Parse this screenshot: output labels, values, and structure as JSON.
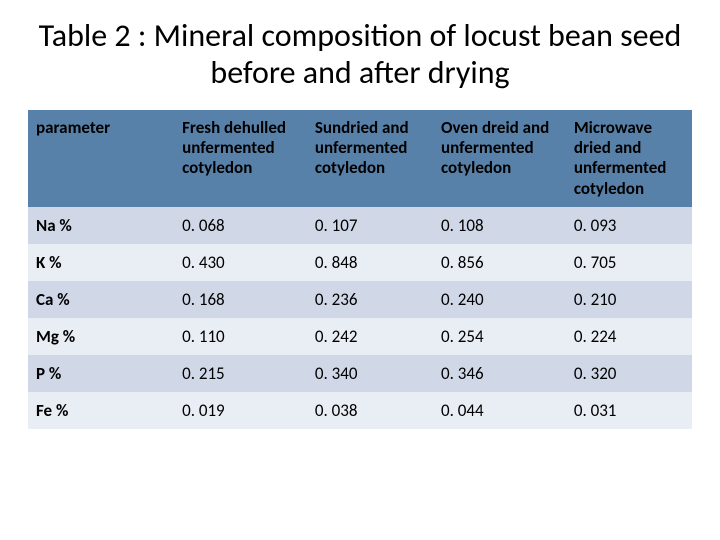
{
  "title": "Table 2 : Mineral composition of locust bean seed before and after drying",
  "table": {
    "type": "table",
    "header_bg": "#5881a9",
    "header_fg": "#000000",
    "row_stripe_a": "#d0d8e8",
    "row_stripe_b": "#e9edf4",
    "title_fontsize": 32,
    "cell_fontsize": 17,
    "columns": [
      "parameter",
      "Fresh dehulled unfermented cotyledon",
      "Sundried and unfermented cotyledon",
      "Oven dreid and unfermented cotyledon",
      "Microwave dried and unfermented cotyledon"
    ],
    "rows": [
      [
        "Na %",
        "0. 068",
        "0. 107",
        "0. 108",
        "0. 093"
      ],
      [
        "K %",
        "0. 430",
        "0. 848",
        "0. 856",
        "0. 705"
      ],
      [
        "Ca %",
        "0. 168",
        "0. 236",
        "0. 240",
        "0. 210"
      ],
      [
        "Mg %",
        "0. 110",
        "0. 242",
        "0. 254",
        "0. 224"
      ],
      [
        "P %",
        "0. 215",
        "0. 340",
        "0. 346",
        "0. 320"
      ],
      [
        "Fe %",
        "0. 019",
        "0. 038",
        "0. 044",
        "0. 031"
      ]
    ]
  }
}
